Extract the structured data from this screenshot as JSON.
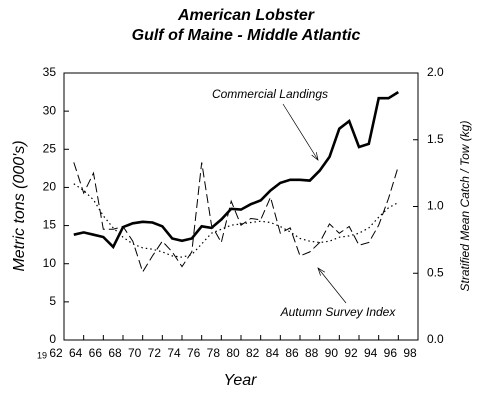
{
  "chart_data": {
    "type": "line",
    "title": "American Lobster",
    "subtitle": "Gulf of Maine - Middle Atlantic",
    "xlabel": "Year",
    "ylabel": "Metric tons (000's)",
    "y2label": "Stratified Mean Catch / Tow (kg)",
    "x": [
      1963,
      1964,
      1965,
      1966,
      1967,
      1968,
      1969,
      1970,
      1971,
      1972,
      1973,
      1974,
      1975,
      1976,
      1977,
      1978,
      1979,
      1980,
      1981,
      1982,
      1983,
      1984,
      1985,
      1986,
      1987,
      1988,
      1989,
      1990,
      1991,
      1992,
      1993,
      1994,
      1995,
      1996
    ],
    "series": [
      {
        "name": "Commercial Landings",
        "color": "#000000",
        "style": "solid",
        "axis": "y",
        "values": [
          13.8,
          14.1,
          13.8,
          13.5,
          12.2,
          14.8,
          15.3,
          15.5,
          15.4,
          14.9,
          13.3,
          13.0,
          13.3,
          14.9,
          14.7,
          15.8,
          17.2,
          17.1,
          17.8,
          18.3,
          19.6,
          20.6,
          21.0,
          21.0,
          20.9,
          22.2,
          24.0,
          27.7,
          28.7,
          25.3,
          25.7,
          31.7,
          31.7,
          32.5
        ]
      },
      {
        "name": "Autumn Survey Index",
        "color": "#000000",
        "style": "dashed",
        "axis": "y2",
        "values": [
          1.33,
          1.1,
          1.25,
          0.83,
          0.83,
          0.85,
          0.74,
          0.51,
          0.63,
          0.74,
          0.66,
          0.55,
          0.66,
          1.33,
          0.86,
          0.73,
          1.04,
          0.86,
          0.91,
          0.9,
          1.07,
          0.8,
          0.84,
          0.63,
          0.66,
          0.73,
          0.87,
          0.8,
          0.85,
          0.71,
          0.73,
          0.86,
          1.06,
          1.3
        ]
      },
      {
        "color": "#000000",
        "style": "dotted",
        "axis": "y2",
        "values": [
          1.17,
          1.12,
          1.05,
          0.93,
          0.84,
          0.77,
          0.72,
          0.69,
          0.68,
          0.66,
          0.63,
          0.62,
          0.64,
          0.72,
          0.8,
          0.83,
          0.86,
          0.87,
          0.88,
          0.89,
          0.88,
          0.85,
          0.81,
          0.76,
          0.74,
          0.73,
          0.74,
          0.77,
          0.78,
          0.8,
          0.84,
          0.92,
          0.99,
          1.03
        ]
      }
    ],
    "xlim": [
      1962,
      1998
    ],
    "xtick_prefix": "19",
    "xticks": [
      {
        "value": 1962,
        "label": "62"
      },
      {
        "value": 1964,
        "label": "64"
      },
      {
        "value": 1966,
        "label": "66"
      },
      {
        "value": 1968,
        "label": "68"
      },
      {
        "value": 1970,
        "label": "70"
      },
      {
        "value": 1972,
        "label": "72"
      },
      {
        "value": 1974,
        "label": "74"
      },
      {
        "value": 1976,
        "label": "76"
      },
      {
        "value": 1978,
        "label": "78"
      },
      {
        "value": 1980,
        "label": "80"
      },
      {
        "value": 1982,
        "label": "82"
      },
      {
        "value": 1984,
        "label": "84"
      },
      {
        "value": 1986,
        "label": "86"
      },
      {
        "value": 1988,
        "label": "88"
      },
      {
        "value": 1990,
        "label": "90"
      },
      {
        "value": 1992,
        "label": "92"
      },
      {
        "value": 1994,
        "label": "94"
      },
      {
        "value": 1996,
        "label": "96"
      },
      {
        "value": 1998,
        "label": "98"
      }
    ],
    "ylim": [
      0,
      35
    ],
    "yticks": [
      0,
      5,
      10,
      15,
      20,
      25,
      30,
      35
    ],
    "y2lim": [
      0,
      2
    ],
    "y2ticks": [
      {
        "value": 0,
        "label": "0.0"
      },
      0.5,
      {
        "value": 1,
        "label": "1.0"
      },
      1.5,
      {
        "value": 2,
        "label": "2.0"
      }
    ]
  }
}
